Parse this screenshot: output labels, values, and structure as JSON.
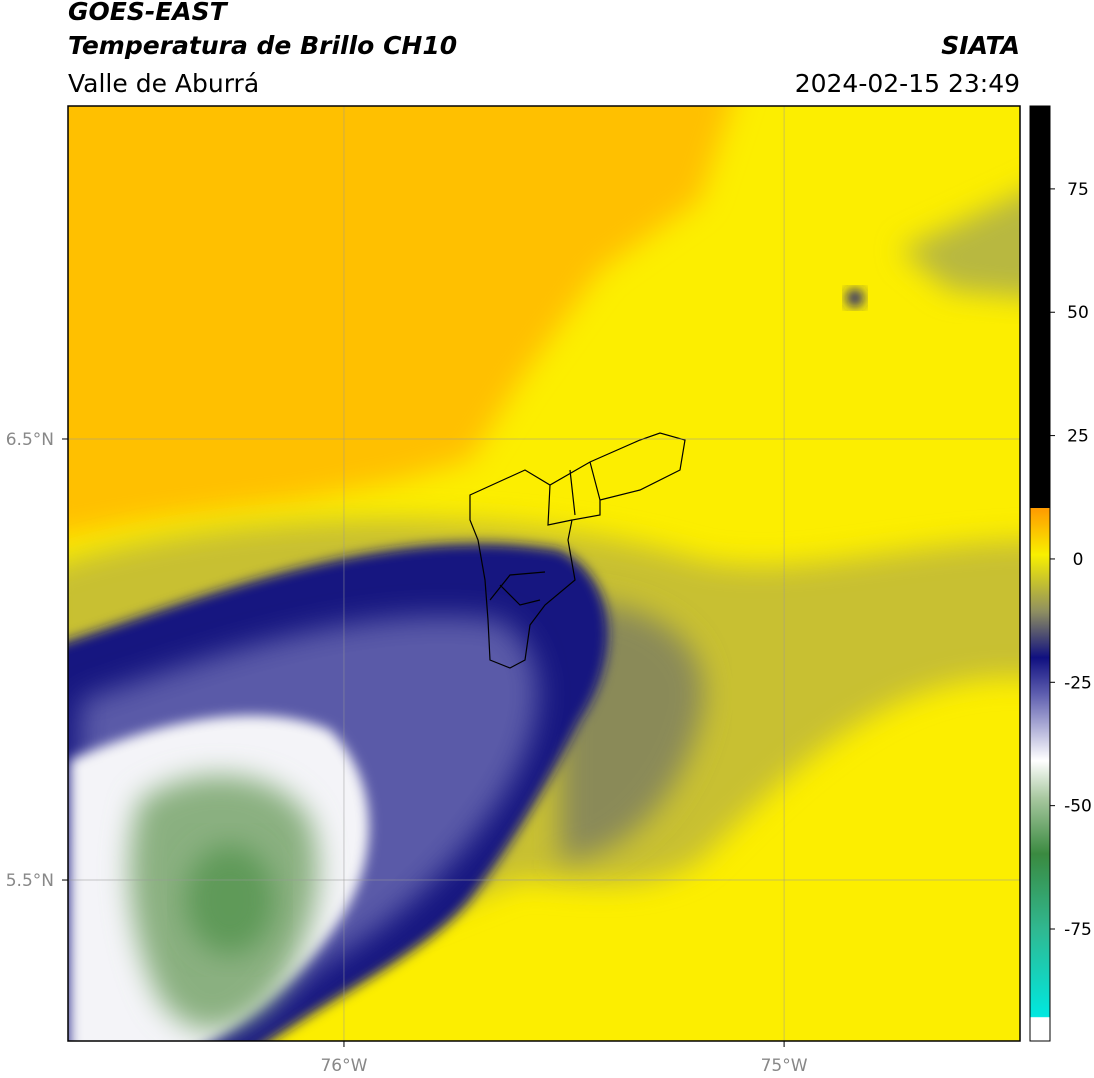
{
  "header": {
    "title": "GOES-EAST",
    "subtitle": "Temperatura de Brillo CH10",
    "region": "Valle de Aburrá",
    "source": "SIATA",
    "datetime": "2024-02-15 23:49"
  },
  "map": {
    "lon_range": [
      -76.627,
      -74.464
    ],
    "lat_range": [
      5.135,
      7.255
    ],
    "lon_ticks": [
      {
        "value": -76,
        "label": "76°W"
      },
      {
        "value": -75,
        "label": "75°W"
      }
    ],
    "lat_ticks": [
      {
        "value": 6.5,
        "label": "6.5°N"
      },
      {
        "value": 5.5,
        "label": "5.5°N"
      }
    ]
  },
  "colorbar": {
    "range": [
      -97.7,
      91.8
    ],
    "ticks": [
      75,
      50,
      25,
      0,
      -25,
      -50,
      -75
    ]
  }
}
